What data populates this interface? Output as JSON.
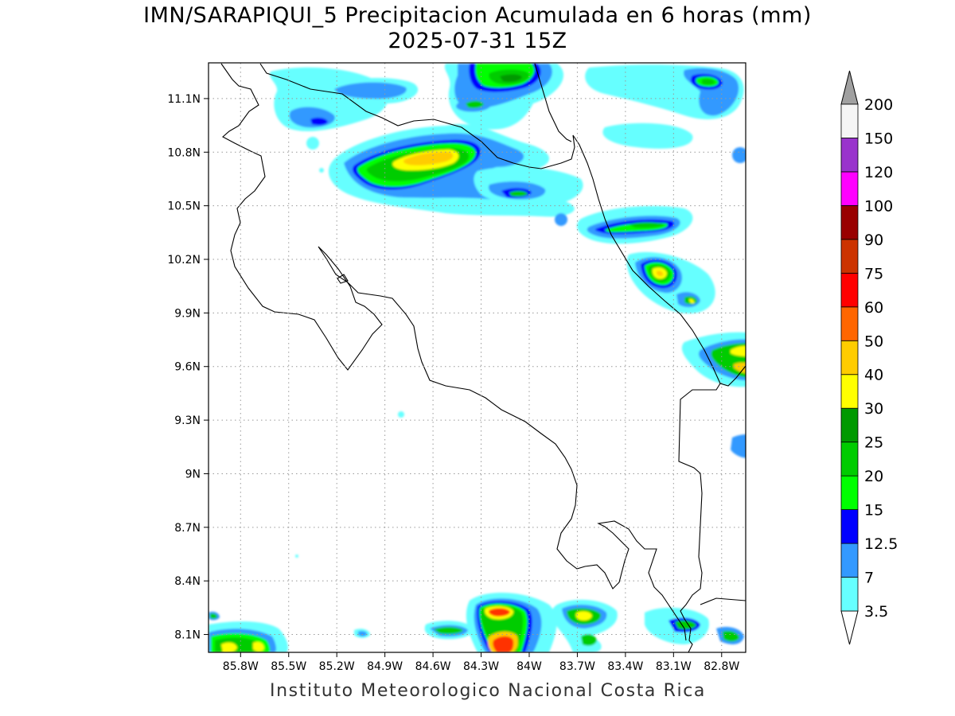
{
  "title_line1": "IMN/SARAPIQUI_5 Precipitacion Acumulada en 6 horas (mm)",
  "title_line2": "2025-07-31 15Z",
  "footer": "Instituto Meteorologico Nacional Costa Rica",
  "map": {
    "lon_range": [
      -86.0,
      -82.65
    ],
    "lat_range": [
      8.0,
      11.3
    ],
    "lat_ticks": [
      {
        "value": 11.1,
        "label": "11.1N"
      },
      {
        "value": 10.8,
        "label": "10.8N"
      },
      {
        "value": 10.5,
        "label": "10.5N"
      },
      {
        "value": 10.2,
        "label": "10.2N"
      },
      {
        "value": 9.9,
        "label": "9.9N"
      },
      {
        "value": 9.6,
        "label": "9.6N"
      },
      {
        "value": 9.3,
        "label": "9.3N"
      },
      {
        "value": 9.0,
        "label": "9N"
      },
      {
        "value": 8.7,
        "label": "8.7N"
      },
      {
        "value": 8.4,
        "label": "8.4N"
      },
      {
        "value": 8.1,
        "label": "8.1N"
      }
    ],
    "lon_ticks": [
      {
        "value": -85.8,
        "label": "85.8W"
      },
      {
        "value": -85.5,
        "label": "85.5W"
      },
      {
        "value": -85.2,
        "label": "85.2W"
      },
      {
        "value": -84.9,
        "label": "84.9W"
      },
      {
        "value": -84.6,
        "label": "84.6W"
      },
      {
        "value": -84.3,
        "label": "84.3W"
      },
      {
        "value": -84.0,
        "label": "84W"
      },
      {
        "value": -83.7,
        "label": "83.7W"
      },
      {
        "value": -83.4,
        "label": "83.4W"
      },
      {
        "value": -83.1,
        "label": "83.1W"
      },
      {
        "value": -82.8,
        "label": "82.8W"
      }
    ],
    "grid": "dotted",
    "coastline_color": "#000000"
  },
  "colorbar": {
    "levels": [
      "3.5",
      "7",
      "12.5",
      "15",
      "20",
      "25",
      "30",
      "40",
      "50",
      "60",
      "75",
      "90",
      "100",
      "120",
      "150",
      "200"
    ],
    "colors": [
      "#66ffff",
      "#3399ff",
      "#0000ff",
      "#00ff00",
      "#00cc00",
      "#009900",
      "#ffff00",
      "#ffcc00",
      "#ff6600",
      "#ff0000",
      "#cc3300",
      "#990000",
      "#ff00ff",
      "#9933cc",
      "#f5f5f5"
    ],
    "over_color": "#a0a0a0",
    "under_color": "#ffffff"
  }
}
